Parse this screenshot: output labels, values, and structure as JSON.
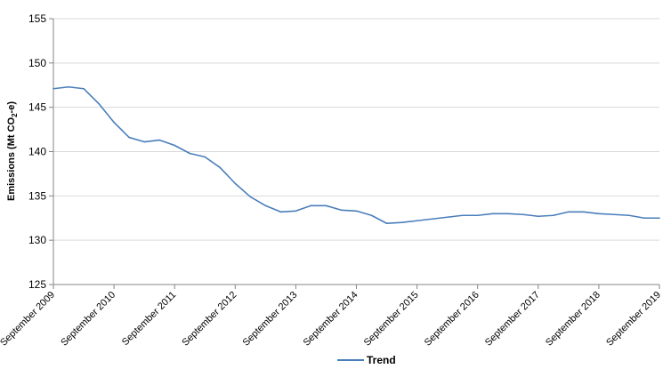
{
  "chart_data": {
    "type": "line",
    "title": "",
    "xlabel": "",
    "ylabel": "Emissions (Mt CO2-e)",
    "ylim": [
      125,
      155
    ],
    "yticks": [
      125,
      130,
      135,
      140,
      145,
      150,
      155
    ],
    "x_tick_labels": [
      "September 2009",
      "September 2010",
      "September 2011",
      "September 2012",
      "September 2013",
      "September 2014",
      "September 2015",
      "September 2016",
      "September 2017",
      "September 2018",
      "September 2019"
    ],
    "grid": "horizontal",
    "legend_position": "bottom",
    "x": [
      "Sep 2009",
      "Dec 2009",
      "Mar 2010",
      "Jun 2010",
      "Sep 2010",
      "Dec 2010",
      "Mar 2011",
      "Jun 2011",
      "Sep 2011",
      "Dec 2011",
      "Mar 2012",
      "Jun 2012",
      "Sep 2012",
      "Dec 2012",
      "Mar 2013",
      "Jun 2013",
      "Sep 2013",
      "Dec 2013",
      "Mar 2014",
      "Jun 2014",
      "Sep 2014",
      "Dec 2014",
      "Mar 2015",
      "Jun 2015",
      "Sep 2015",
      "Dec 2015",
      "Mar 2016",
      "Jun 2016",
      "Sep 2016",
      "Dec 2016",
      "Mar 2017",
      "Jun 2017",
      "Sep 2017",
      "Dec 2017",
      "Mar 2018",
      "Jun 2018",
      "Sep 2018",
      "Dec 2018",
      "Mar 2019",
      "Jun 2019",
      "Sep 2019"
    ],
    "series": [
      {
        "name": "Trend",
        "color": "#4a7ebb",
        "values": [
          147.1,
          147.3,
          147.1,
          145.4,
          143.3,
          141.6,
          141.1,
          141.3,
          140.7,
          139.8,
          139.4,
          138.2,
          136.4,
          134.9,
          133.9,
          133.2,
          133.3,
          133.9,
          133.9,
          133.4,
          133.3,
          132.8,
          131.9,
          132.0,
          132.2,
          132.4,
          132.6,
          132.8,
          132.8,
          133.0,
          133.0,
          132.9,
          132.7,
          132.8,
          133.2,
          133.2,
          133.0,
          132.9,
          132.8,
          132.5,
          132.5
        ]
      }
    ]
  }
}
